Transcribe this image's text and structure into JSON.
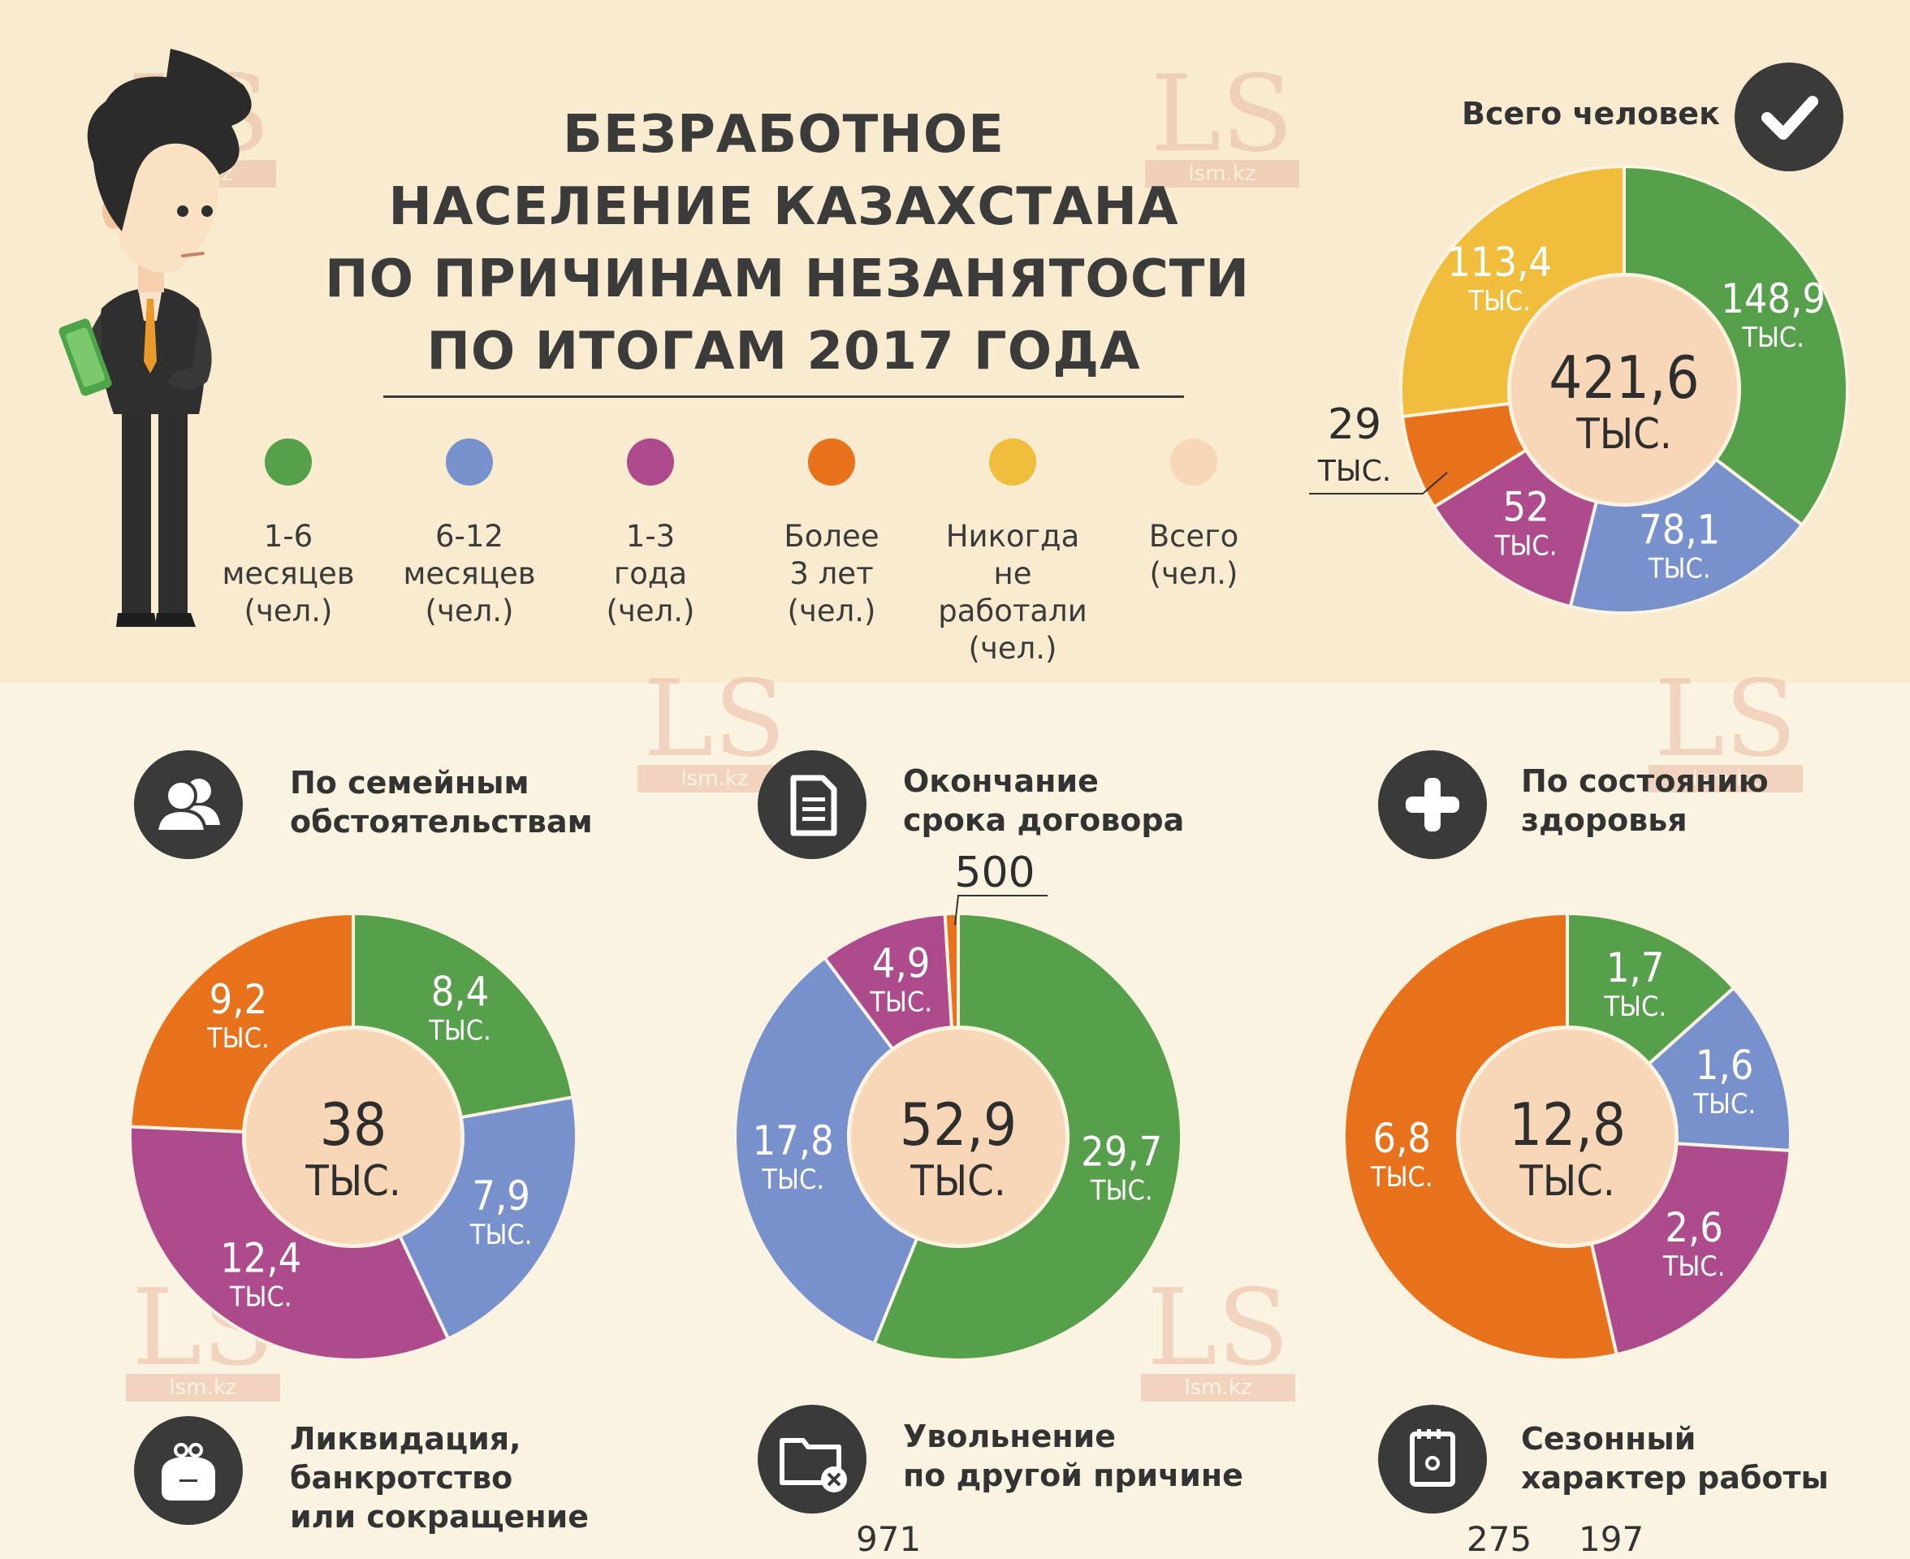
{
  "title_lines": [
    "БЕЗРАБОТНОЕ",
    "НАСЕЛЕНИЕ КАЗАХСТАНА",
    "ПО ПРИЧИНАМ НЕЗАНЯТОСТИ",
    "ПО ИТОГАМ 2017 ГОДА"
  ],
  "legend": [
    {
      "label": "1-6 месяцев (чел.)",
      "lines": [
        "1-6",
        "месяцев",
        "(чел.)"
      ],
      "color": "#57a04b"
    },
    {
      "label": "6-12 месяцев (чел.)",
      "lines": [
        "6-12",
        "месяцев",
        "(чел.)"
      ],
      "color": "#7891cc"
    },
    {
      "label": "1-3 года (чел.)",
      "lines": [
        "1-3",
        "года",
        "(чел.)"
      ],
      "color": "#ad4b8c"
    },
    {
      "label": "Более 3 лет (чел.)",
      "lines": [
        "Более",
        "3 лет",
        "(чел.)"
      ],
      "color": "#e8711b"
    },
    {
      "label": "Никогда не работали (чел.)",
      "lines": [
        "Никогда",
        "не работали",
        "(чел.)"
      ],
      "color": "#f1bd3d"
    },
    {
      "label": "Всего (чел.)",
      "lines": [
        "Всего",
        "(чел.)"
      ],
      "color": "#f8d7b8"
    }
  ],
  "total": {
    "label": "Всего человек",
    "icon": "checkmark-icon"
  },
  "sections": [
    {
      "title": "По семейным обстоятельствам",
      "title_lines": [
        "По семейным",
        "обстоятельствам"
      ],
      "icon": "people-icon"
    },
    {
      "title": "Окончание срока договора",
      "title_lines": [
        "Окончание",
        "срока договора"
      ],
      "icon": "document-icon"
    },
    {
      "title": "По состоянию здоровья",
      "title_lines": [
        "По состоянию",
        "здоровья"
      ],
      "icon": "plus-icon"
    },
    {
      "title": "Ликвидация, банкротство или сокращение",
      "title_lines": [
        "Ликвидация,",
        "банкротство",
        "или сокращение"
      ],
      "icon": "purse-icon"
    },
    {
      "title": "Увольнение по другой причине",
      "title_lines": [
        "Увольнение",
        "по другой причине"
      ],
      "icon": "folder-x-icon"
    },
    {
      "title": "Сезонный характер работы",
      "title_lines": [
        "Сезонный",
        "характер работы"
      ],
      "icon": "calendar-icon"
    }
  ],
  "bottom_partial_numbers": [
    "971",
    "275",
    "197"
  ],
  "watermark": {
    "text": "LS",
    "sub": "lsm.kz"
  },
  "unit": "ТЫС.",
  "chart_data": [
    {
      "type": "pie",
      "donut": true,
      "title": "Всего человек",
      "center_value": "421,6",
      "center_unit": "ТЫС.",
      "slices": [
        {
          "category": "1-6 месяцев",
          "value": 148.9,
          "label": "148,9",
          "color": "#57a04b"
        },
        {
          "category": "6-12 месяцев",
          "value": 78.1,
          "label": "78,1",
          "color": "#7891cc"
        },
        {
          "category": "1-3 года",
          "value": 52,
          "label": "52",
          "color": "#ad4b8c"
        },
        {
          "category": "Более 3 лет",
          "value": 29,
          "label": "29",
          "color": "#e8711b"
        },
        {
          "category": "Никогда не работали",
          "value": 113.4,
          "label": "113,4",
          "color": "#f1bd3d"
        }
      ]
    },
    {
      "type": "pie",
      "donut": true,
      "title": "По семейным обстоятельствам",
      "center_value": "38",
      "center_unit": "ТЫС.",
      "slices": [
        {
          "category": "1-6 месяцев",
          "value": 8.4,
          "label": "8,4",
          "color": "#57a04b"
        },
        {
          "category": "6-12 месяцев",
          "value": 7.9,
          "label": "7,9",
          "color": "#7891cc"
        },
        {
          "category": "1-3 года",
          "value": 12.4,
          "label": "12,4",
          "color": "#ad4b8c"
        },
        {
          "category": "Более 3 лет",
          "value": 9.2,
          "label": "9,2",
          "color": "#e8711b"
        }
      ]
    },
    {
      "type": "pie",
      "donut": true,
      "title": "Окончание срока договора",
      "center_value": "52,9",
      "center_unit": "ТЫС.",
      "slices": [
        {
          "category": "1-6 месяцев",
          "value": 29.7,
          "label": "29,7",
          "color": "#57a04b"
        },
        {
          "category": "6-12 месяцев",
          "value": 17.8,
          "label": "17,8",
          "color": "#7891cc"
        },
        {
          "category": "1-3 года",
          "value": 4.9,
          "label": "4,9",
          "color": "#ad4b8c"
        },
        {
          "category": "Более 3 лет",
          "value": 0.5,
          "label": "500",
          "color": "#e8711b"
        }
      ]
    },
    {
      "type": "pie",
      "donut": true,
      "title": "По состоянию здоровья",
      "center_value": "12,8",
      "center_unit": "ТЫС.",
      "slices": [
        {
          "category": "1-6 месяцев",
          "value": 1.7,
          "label": "1,7",
          "color": "#57a04b"
        },
        {
          "category": "6-12 месяцев",
          "value": 1.6,
          "label": "1,6",
          "color": "#7891cc"
        },
        {
          "category": "1-3 года",
          "value": 2.6,
          "label": "2,6",
          "color": "#ad4b8c"
        },
        {
          "category": "Более 3 лет",
          "value": 6.8,
          "label": "6,8",
          "color": "#e8711b"
        }
      ]
    }
  ]
}
